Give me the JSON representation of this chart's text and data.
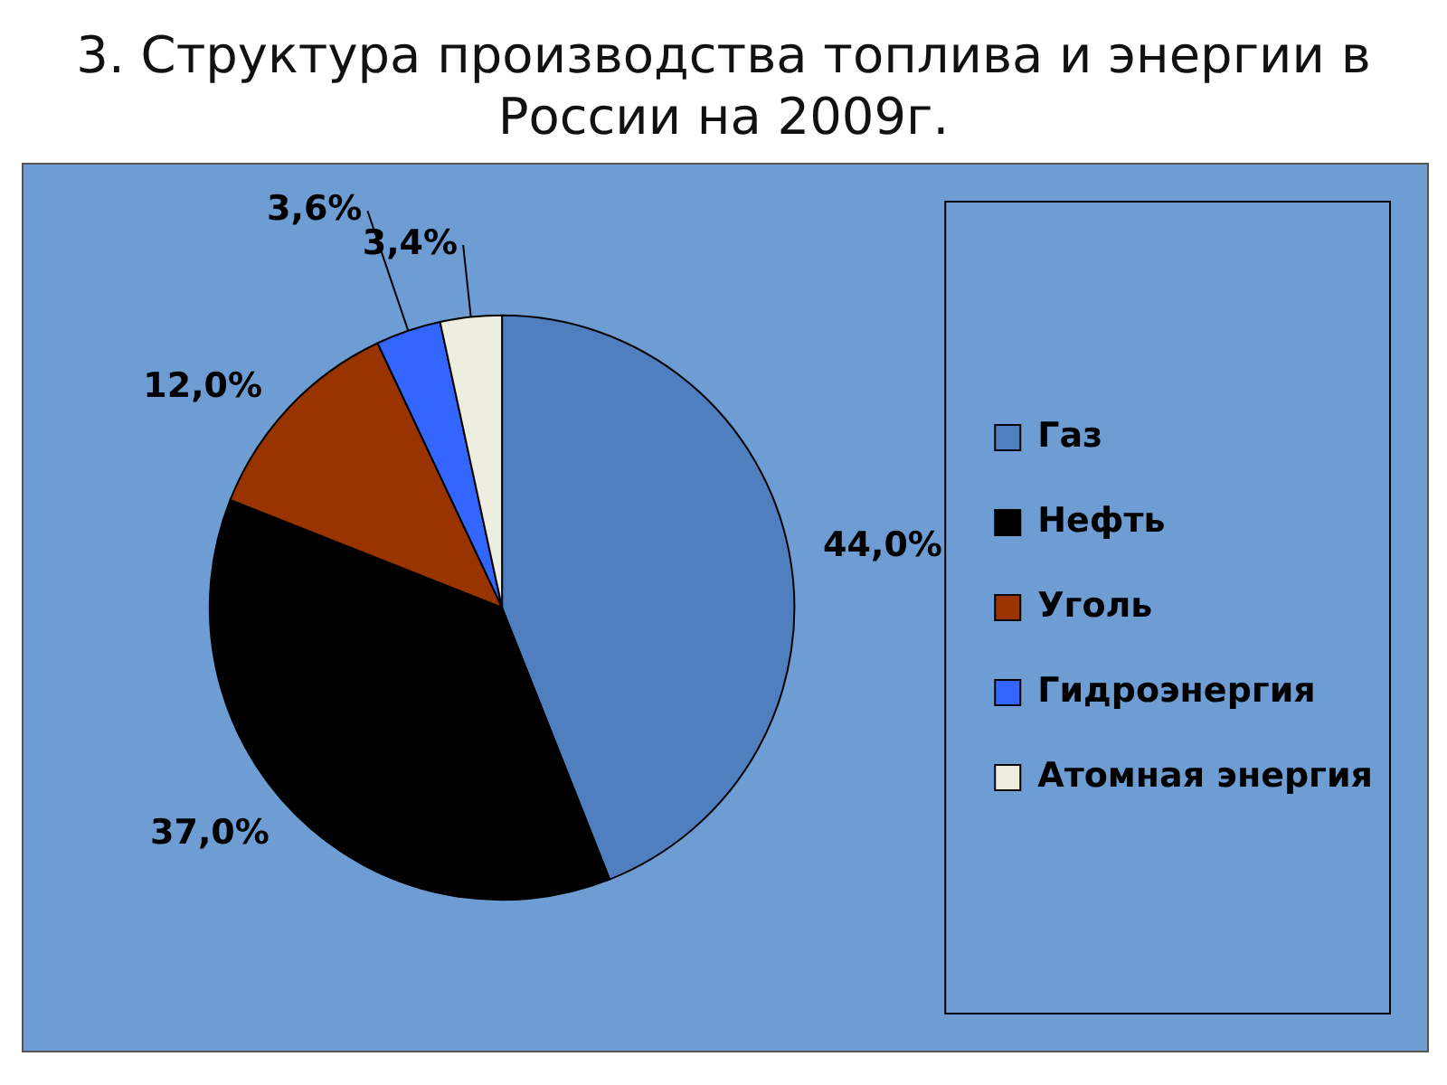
{
  "chart_data": {
    "type": "pie",
    "title": "3. Структура производства топлива и энергии в России на 2009г.",
    "categories": [
      "Газ",
      "Нефть",
      "Уголь",
      "Гидроэнергия",
      "Атомная энергия"
    ],
    "values": [
      44.0,
      37.0,
      12.0,
      3.6,
      3.4
    ],
    "value_labels": [
      "44,0%",
      "37,0%",
      "12,0%",
      "3,6%",
      "3,4%"
    ],
    "colors": [
      "#4f7fbf",
      "#000000",
      "#993300",
      "#3366ff",
      "#eeeee0"
    ],
    "legend": "right"
  }
}
